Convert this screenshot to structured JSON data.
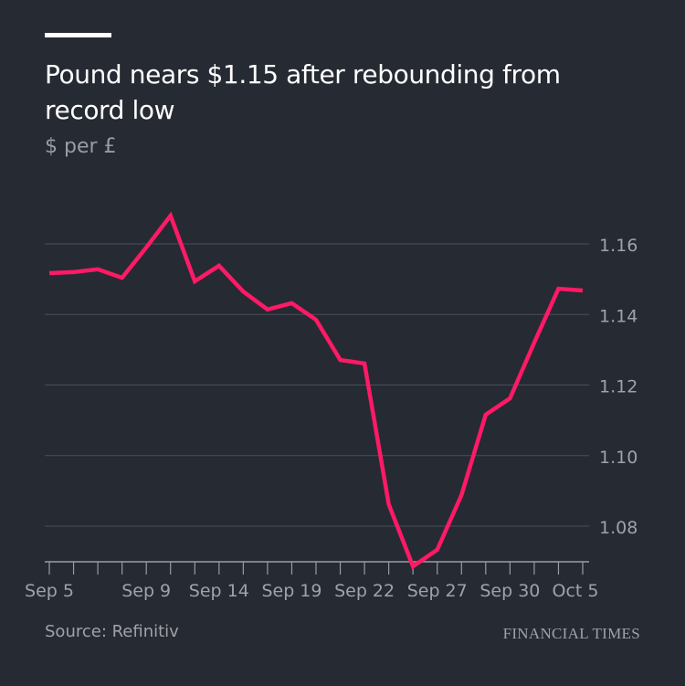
{
  "chart_data": {
    "type": "line",
    "title": "Pound nears $1.15 after rebounding from record low",
    "subtitle": "$ per £",
    "xlabel": "",
    "ylabel": "$ per £",
    "x": [
      "Sep 5",
      "Sep 6",
      "Sep 7",
      "Sep 8",
      "Sep 9",
      "Sep 12",
      "Sep 13",
      "Sep 14",
      "Sep 15",
      "Sep 16",
      "Sep 19",
      "Sep 20",
      "Sep 21",
      "Sep 22",
      "Sep 23",
      "Sep 26",
      "Sep 27",
      "Sep 28",
      "Sep 29",
      "Sep 30",
      "Oct 3",
      "Oct 4",
      "Oct 5"
    ],
    "series": [
      {
        "name": "GBP/USD",
        "color": "#ff1a66",
        "values": [
          1.1517,
          1.152,
          1.1528,
          1.1504,
          1.159,
          1.168,
          1.1494,
          1.1538,
          1.1465,
          1.1414,
          1.1432,
          1.1385,
          1.1271,
          1.1261,
          1.0862,
          1.0686,
          1.0733,
          1.0888,
          1.1116,
          1.1162,
          1.132,
          1.1473,
          1.1468
        ]
      }
    ],
    "xticklabels": [
      {
        "index": 0,
        "label": "Sep 5"
      },
      {
        "index": 4,
        "label": "Sep 9"
      },
      {
        "index": 7,
        "label": "Sep 14"
      },
      {
        "index": 10,
        "label": "Sep 19"
      },
      {
        "index": 13,
        "label": "Sep 22"
      },
      {
        "index": 16,
        "label": "Sep 27"
      },
      {
        "index": 19,
        "label": "Sep 30"
      },
      {
        "index": 22,
        "label": "Oct 5"
      }
    ],
    "yticks": [
      1.08,
      1.1,
      1.12,
      1.14,
      1.16
    ],
    "yticklabels": [
      "1.08",
      "1.10",
      "1.12",
      "1.14",
      "1.16"
    ],
    "ylim": [
      1.07,
      1.17
    ],
    "grid": true,
    "legend": "none"
  },
  "source": "Source: Refinitiv",
  "brand": "FINANCIAL TIMES",
  "colors": {
    "background": "#262a33",
    "line": "#ff1a66",
    "grid": "#4a4e57",
    "text": "#ffffff",
    "muted": "#9a9ca1"
  }
}
